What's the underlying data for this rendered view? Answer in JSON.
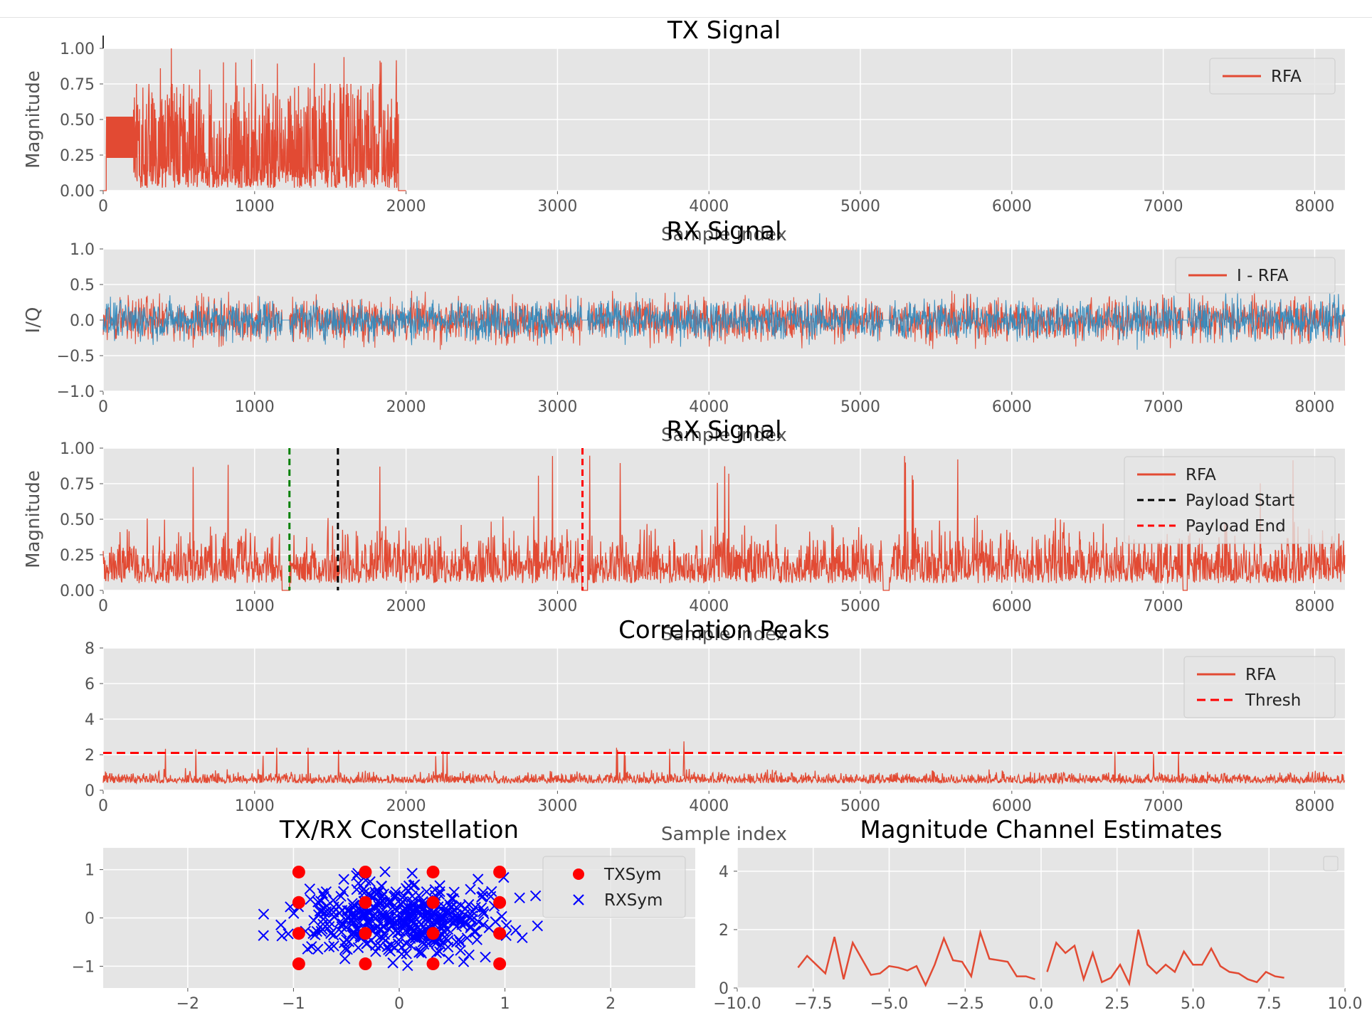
{
  "chart_data": [
    {
      "id": "tx",
      "type": "line",
      "title": "TX Signal",
      "xlabel": "Sample index",
      "ylabel": "Magnitude",
      "xlim": [
        0,
        8200
      ],
      "ylim": [
        0,
        1.0
      ],
      "xticks": [
        "0",
        "1000",
        "2000",
        "3000",
        "4000",
        "5000",
        "6000",
        "7000",
        "8000"
      ],
      "yticks": [
        "0.00",
        "0.25",
        "0.50",
        "0.75",
        "1.00"
      ],
      "grid": true,
      "legend": {
        "position": "top-right",
        "entries": [
          "RFA"
        ]
      },
      "series": [
        {
          "name": "RFA",
          "color": "#E24A33",
          "segments": [
            {
              "x_range": [
                0,
                20
              ],
              "low": 0.0,
              "high": 0.0
            },
            {
              "x_range": [
                20,
                200
              ],
              "low": 0.23,
              "high": 0.52
            },
            {
              "x_range": [
                200,
                1950
              ],
              "low": 0.02,
              "high": 0.75,
              "peak": 1.0,
              "noise": true
            }
          ]
        }
      ]
    },
    {
      "id": "rx_iq",
      "type": "line",
      "title": "RX Signal",
      "xlabel": "Sample index",
      "ylabel": "I/Q",
      "xlim": [
        0,
        8200
      ],
      "ylim": [
        -1.0,
        1.0
      ],
      "xticks": [
        "0",
        "1000",
        "2000",
        "3000",
        "4000",
        "5000",
        "6000",
        "7000",
        "8000"
      ],
      "yticks": [
        "−1.0",
        "−0.5",
        "0.0",
        "0.5",
        "1.0"
      ],
      "grid": true,
      "legend": {
        "position": "top-right",
        "entries": [
          "I - RFA"
        ]
      },
      "gaps": [
        [
          1180,
          1230
        ],
        [
          3160,
          3200
        ],
        [
          5150,
          5190
        ],
        [
          7130,
          7160
        ]
      ],
      "series": [
        {
          "name": "I",
          "color": "#E24A33",
          "amplitude": 0.6
        },
        {
          "name": "Q",
          "color": "#348ABD",
          "amplitude": 0.55
        }
      ]
    },
    {
      "id": "rx_mag",
      "type": "line",
      "title": "RX Signal",
      "xlabel": "Sample index",
      "ylabel": "Magnitude",
      "xlim": [
        0,
        8200
      ],
      "ylim": [
        0,
        1.0
      ],
      "xticks": [
        "0",
        "1000",
        "2000",
        "3000",
        "4000",
        "5000",
        "6000",
        "7000",
        "8000"
      ],
      "yticks": [
        "0.00",
        "0.25",
        "0.50",
        "0.75",
        "1.00"
      ],
      "grid": true,
      "legend": {
        "position": "top-right",
        "entries": [
          "RFA",
          "Payload Start",
          "Payload End"
        ]
      },
      "gaps": [
        [
          1180,
          1230
        ],
        [
          3160,
          3200
        ],
        [
          5150,
          5190
        ],
        [
          7130,
          7160
        ]
      ],
      "vlines": [
        {
          "x": 1230,
          "color": "#008000"
        },
        {
          "x": 1550,
          "color": "#000000"
        },
        {
          "x": 3165,
          "color": "#FF0000"
        }
      ],
      "series": [
        {
          "name": "RFA",
          "color": "#E24A33",
          "amplitude": 0.62
        }
      ]
    },
    {
      "id": "corr",
      "type": "line",
      "title": "Correlation Peaks",
      "xlabel": "Sample index",
      "ylabel": "",
      "xlim": [
        0,
        8200
      ],
      "ylim": [
        0,
        8
      ],
      "xticks": [
        "0",
        "1000",
        "2000",
        "3000",
        "4000",
        "5000",
        "6000",
        "7000",
        "8000"
      ],
      "yticks": [
        "0",
        "2",
        "4",
        "6",
        "8"
      ],
      "grid": true,
      "legend": {
        "position": "top-right",
        "entries": [
          "RFA",
          "Thresh"
        ]
      },
      "threshold": 2.1,
      "series": [
        {
          "name": "RFA",
          "color": "#E24A33",
          "amplitude": 1.4,
          "peak": 2.75
        }
      ]
    },
    {
      "id": "const",
      "type": "scatter",
      "title": "TX/RX Constellation",
      "xlim": [
        -2.8,
        2.8
      ],
      "ylim": [
        -1.45,
        1.45
      ],
      "xticks": [
        "−2",
        "−1",
        "0",
        "1",
        "2"
      ],
      "yticks": [
        "−1",
        "0",
        "1"
      ],
      "grid": true,
      "legend": {
        "position": "top-right",
        "entries": [
          "TXSym",
          "RXSym"
        ]
      },
      "tx_symbols": {
        "name": "TXSym",
        "color": "#FF0000",
        "levels": [
          -0.95,
          -0.32,
          0.32,
          0.95
        ]
      },
      "rx_symbols": {
        "name": "RXSym",
        "color": "#0000FF",
        "count": 420
      }
    },
    {
      "id": "chan",
      "type": "line",
      "title": "Magnitude Channel Estimates",
      "xlim": [
        -10.0,
        10.0
      ],
      "ylim": [
        0,
        4.8
      ],
      "xticks": [
        "−10.0",
        "−7.5",
        "−5.0",
        "−2.5",
        "0.0",
        "2.5",
        "5.0",
        "7.5",
        "10.0"
      ],
      "yticks": [
        "0",
        "2",
        "4"
      ],
      "grid": true,
      "series": [
        {
          "color": "#E24A33",
          "x": [
            -8.0,
            -7.7,
            -7.4,
            -7.1,
            -6.8,
            -6.5,
            -6.2,
            -5.9,
            -5.6,
            -5.3,
            -5.0,
            -4.7,
            -4.4,
            -4.1,
            -3.8,
            -3.5,
            -3.2,
            -2.9,
            -2.6,
            -2.3,
            -2.0,
            -1.7,
            -1.4,
            -1.1,
            -0.8,
            -0.5,
            -0.2
          ],
          "y": [
            0.7,
            1.1,
            0.8,
            0.5,
            1.75,
            0.3,
            1.55,
            1.0,
            0.45,
            0.5,
            0.75,
            0.7,
            0.6,
            0.75,
            0.1,
            0.8,
            1.7,
            0.95,
            0.9,
            0.4,
            1.9,
            1.0,
            0.95,
            0.9,
            0.4,
            0.4,
            0.3
          ]
        },
        {
          "color": "#E24A33",
          "x": [
            0.2,
            0.5,
            0.8,
            1.1,
            1.4,
            1.7,
            2.0,
            2.3,
            2.6,
            2.9,
            3.2,
            3.5,
            3.8,
            4.1,
            4.4,
            4.7,
            5.0,
            5.3,
            5.6,
            5.9,
            6.2,
            6.5,
            6.8,
            7.1,
            7.4,
            7.7,
            8.0
          ],
          "y": [
            0.55,
            1.55,
            1.2,
            1.45,
            0.3,
            1.2,
            0.2,
            0.35,
            0.8,
            0.15,
            2.0,
            0.8,
            0.5,
            0.8,
            0.55,
            1.25,
            0.8,
            0.8,
            1.35,
            0.75,
            0.55,
            0.5,
            0.3,
            0.2,
            0.55,
            0.4,
            0.35
          ]
        }
      ]
    }
  ]
}
